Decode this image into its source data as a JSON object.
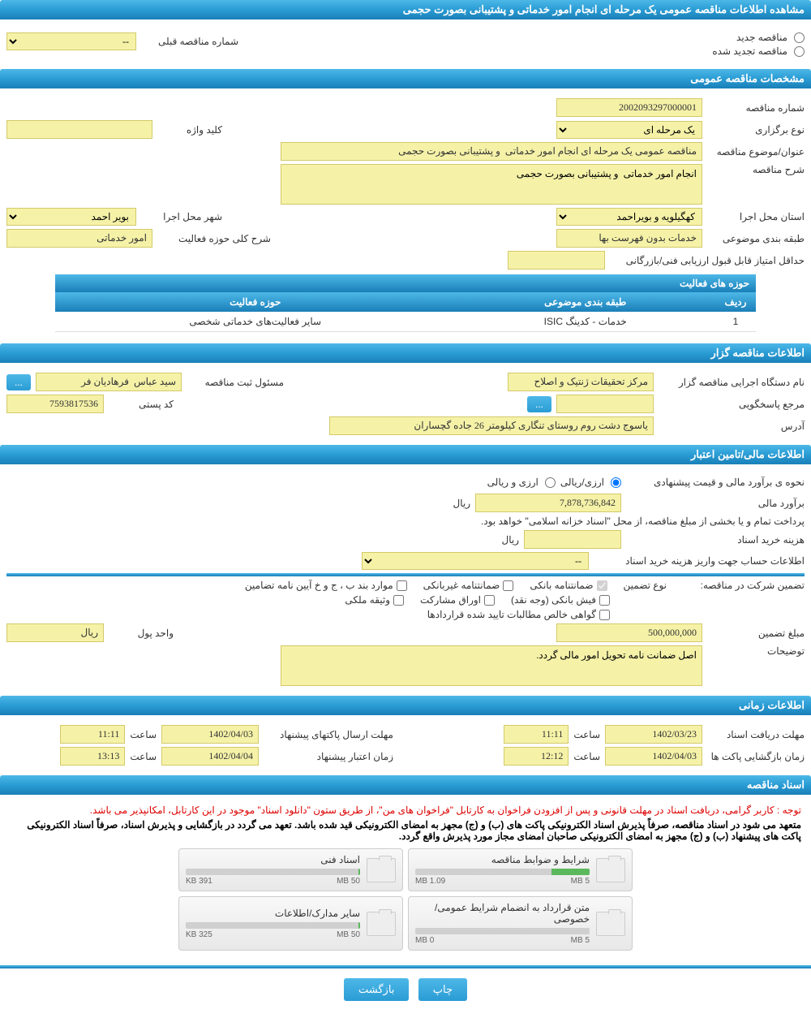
{
  "page_title": "مشاهده اطلاعات مناقصه عمومی یک مرحله ای انجام امور خدماتی و پشتیبانی بصورت حجمی",
  "tender_type": {
    "new_label": "مناقصه جدید",
    "renewed_label": "مناقصه تجدید شده",
    "prev_number_label": "شماره مناقصه قبلی",
    "prev_number_value": "--"
  },
  "sec_general": {
    "header": "مشخصات مناقصه عمومی",
    "tender_no_label": "شماره مناقصه",
    "tender_no": "2002093297000001",
    "holding_type_label": "نوع برگزاری",
    "holding_type": "یک مرحله ای",
    "keyword_label": "کلید واژه",
    "keyword": "",
    "title_label": "عنوان/موضوع مناقصه",
    "title": "مناقصه عمومی یک مرحله ای انجام امور خدماتی  و پشتیبانی بصورت حجمی",
    "desc_label": "شرح مناقصه",
    "desc": "انجام امور خدماتی  و پشتیبانی بصورت حجمی",
    "province_label": "استان محل اجرا",
    "province": "کهگیلویه و بویراحمد",
    "city_label": "شهر محل اجرا",
    "city": "بویر احمد",
    "category_label": "طبقه بندی موضوعی",
    "category": "خدمات بدون فهرست بها",
    "scope_label": "شرح کلی حوزه فعالیت",
    "scope": "امور خدماتی",
    "min_score_label": "حداقل امتیاز قابل قبول ارزیابی فنی/بازرگانی",
    "min_score": ""
  },
  "activity_table": {
    "header": "حوزه های فعالیت",
    "col_row": "ردیف",
    "col_cat": "طبقه بندی موضوعی",
    "col_scope": "حوزه فعالیت",
    "rows": [
      {
        "idx": "1",
        "cat": "خدمات - کدینگ ISIC",
        "scope": "سایر فعالیت‌های خدماتی شخصی"
      }
    ]
  },
  "sec_owner": {
    "header": "اطلاعات مناقصه گزار",
    "org_label": "نام دستگاه اجرایی مناقصه گزار",
    "org": "مرکز تحقیقات ژنتیک و اصلاح",
    "reg_person_label": "مسئول ثبت مناقصه",
    "reg_person": "سید عباس  فرهادیان فر",
    "more_btn": "...",
    "responder_label": "مرجع پاسخگویی",
    "responder": "",
    "postal_label": "کد پستی",
    "postal": "7593817536",
    "address_label": "آدرس",
    "address": "یاسوج دشت روم روستای تنگاری کیلومتر 26 جاده گچساران"
  },
  "sec_financial": {
    "header": "اطلاعات مالی/تامین اعتبار",
    "method_label": "نحوه ی برآورد مالی و قیمت پیشنهادی",
    "currency_option1": "ارزی/ریالی",
    "currency_option2": "ارزی و ریالی",
    "estimate_label": "برآورد مالی",
    "estimate": "7,878,736,842",
    "currency_unit": "ریال",
    "payment_note": "پرداخت تمام و یا بخشی از مبلغ مناقصه، از محل \"اسناد خزانه اسلامی\" خواهد بود.",
    "doc_fee_label": "هزینه خرید اسناد",
    "doc_fee": "",
    "account_label": "اطلاعات حساب جهت واریز هزینه خرید اسناد",
    "account_value": "--",
    "guarantee_title": "تضمین شرکت در مناقصه:",
    "guarantee_type_label": "نوع تضمین",
    "g_bank": "ضمانتنامه بانکی",
    "g_nonbank": "ضمانتنامه غیربانکی",
    "g_aiin": "موارد بند ب ، ج و خ آیین نامه تضامین",
    "g_cash": "فیش بانکی (وجه نقد)",
    "g_bonds": "اوراق مشارکت",
    "g_property": "وثیقه ملکی",
    "g_cert": "گواهی خالص مطالبات تایید شده قراردادها",
    "guarantee_amount_label": "مبلغ تضمین",
    "guarantee_amount": "500,000,000",
    "unit_label": "واحد پول",
    "unit": "ریال",
    "notes_label": "توضیحات",
    "notes": "اصل ضمانت نامه تحویل امور مالی گردد."
  },
  "sec_timing": {
    "header": "اطلاعات زمانی",
    "receive_label": "مهلت دریافت اسناد",
    "receive_date": "1402/03/23",
    "receive_time": "11:11",
    "submit_label": "مهلت ارسال پاکتهای پیشنهاد",
    "submit_date": "1402/04/03",
    "submit_time": "11:11",
    "open_label": "زمان بازگشایی پاکت ها",
    "open_date": "1402/04/03",
    "open_time": "12:12",
    "validity_label": "زمان اعتبار پیشنهاد",
    "validity_date": "1402/04/04",
    "validity_time": "13:13",
    "time_word": "ساعت"
  },
  "sec_docs": {
    "header": "اسناد مناقصه",
    "note1": "توجه : کاربر گرامی، دریافت اسناد در مهلت قانونی و پس از افزودن فراخوان به کارتابل \"فراخوان های من\"، از طریق ستون \"دانلود اسناد\" موجود در این کارتابل، امکانپذیر می باشد.",
    "note2": "متعهد می شود در اسناد مناقصه، صرفاً پذیرش اسناد الکترونیکی پاکت های (ب) و (ج) مجهز به امضای الکترونیکی قید شده باشد. تعهد می گردد در بازگشایی و پذیرش اسناد، صرفاً اسناد الکترونیکی پاکت های پیشنهاد (ب) و (ج) مجهز به امضای الکترونیکی صاحبان امضای مجاز مورد پذیرش واقع گردد.",
    "files": [
      {
        "title": "شرایط و ضوابط مناقصه",
        "used": "1.09 MB",
        "total": "5 MB",
        "pct": 22
      },
      {
        "title": "اسناد فنی",
        "used": "391 KB",
        "total": "50 MB",
        "pct": 1
      },
      {
        "title": "متن قرارداد به انضمام شرایط عمومی/خصوصی",
        "used": "0 MB",
        "total": "5 MB",
        "pct": 0
      },
      {
        "title": "سایر مدارک/اطلاعات",
        "used": "325 KB",
        "total": "50 MB",
        "pct": 1
      }
    ]
  },
  "buttons": {
    "print": "چاپ",
    "back": "بازگشت"
  },
  "colors": {
    "header_blue": "#2a9cd4",
    "input_yellow": "#f5f2a8",
    "red": "#dd0000"
  }
}
